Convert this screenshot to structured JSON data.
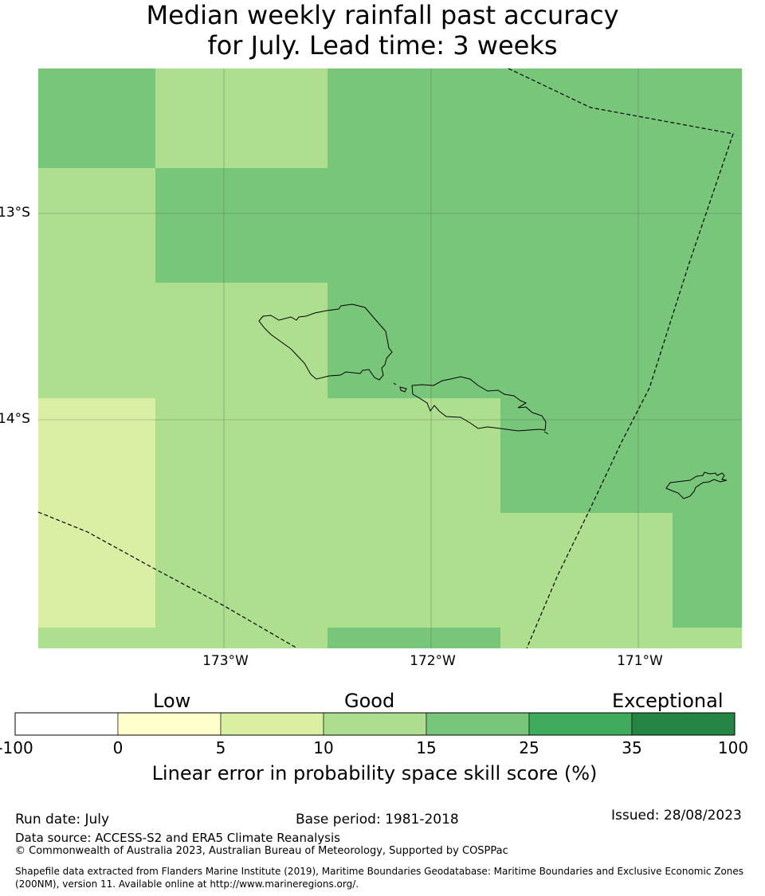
{
  "title": {
    "line1": "Median weekly rainfall past accuracy",
    "line2": "for July. Lead time: 3 weeks"
  },
  "map": {
    "lat_labels": [
      "13°S",
      "14°S"
    ],
    "lon_labels": [
      "173°W",
      "172°W",
      "171°W"
    ],
    "colors": {
      "c5_10": "#d9efa3",
      "c10_15": "#addf8e",
      "c15_25": "#78c679",
      "border": "#000000",
      "grid": "#555555"
    }
  },
  "colorbar": {
    "categories": [
      "Low",
      "Good",
      "Exceptional"
    ],
    "ticks": [
      "-100",
      "0",
      "5",
      "10",
      "15",
      "25",
      "35",
      "100"
    ],
    "colors": [
      "#ffffff",
      "#ffffcc",
      "#d9f0a3",
      "#addd8e",
      "#78c679",
      "#41ab5d",
      "#238443"
    ],
    "label": "Linear error in probability space skill score (%)"
  },
  "footer": {
    "run_date": "Run date: July",
    "base_period": "Base period: 1981-2018",
    "issued": "Issued: 28/08/2023",
    "data_source": "Data source: ACCESS-S2 and ERA5 Climate Reanalysis",
    "copyright": "© Commonwealth of Australia 2023, Australian Bureau of Meteorology, Supported by COSPPac",
    "shapefile": "Shapefile data extracted from Flanders Marine Institute (2019), Maritime Boundaries Geodatabase: Maritime Boundaries and Exclusive Economic Zones (200NM), version 11. Available online at http://www.marineregions.org/."
  }
}
